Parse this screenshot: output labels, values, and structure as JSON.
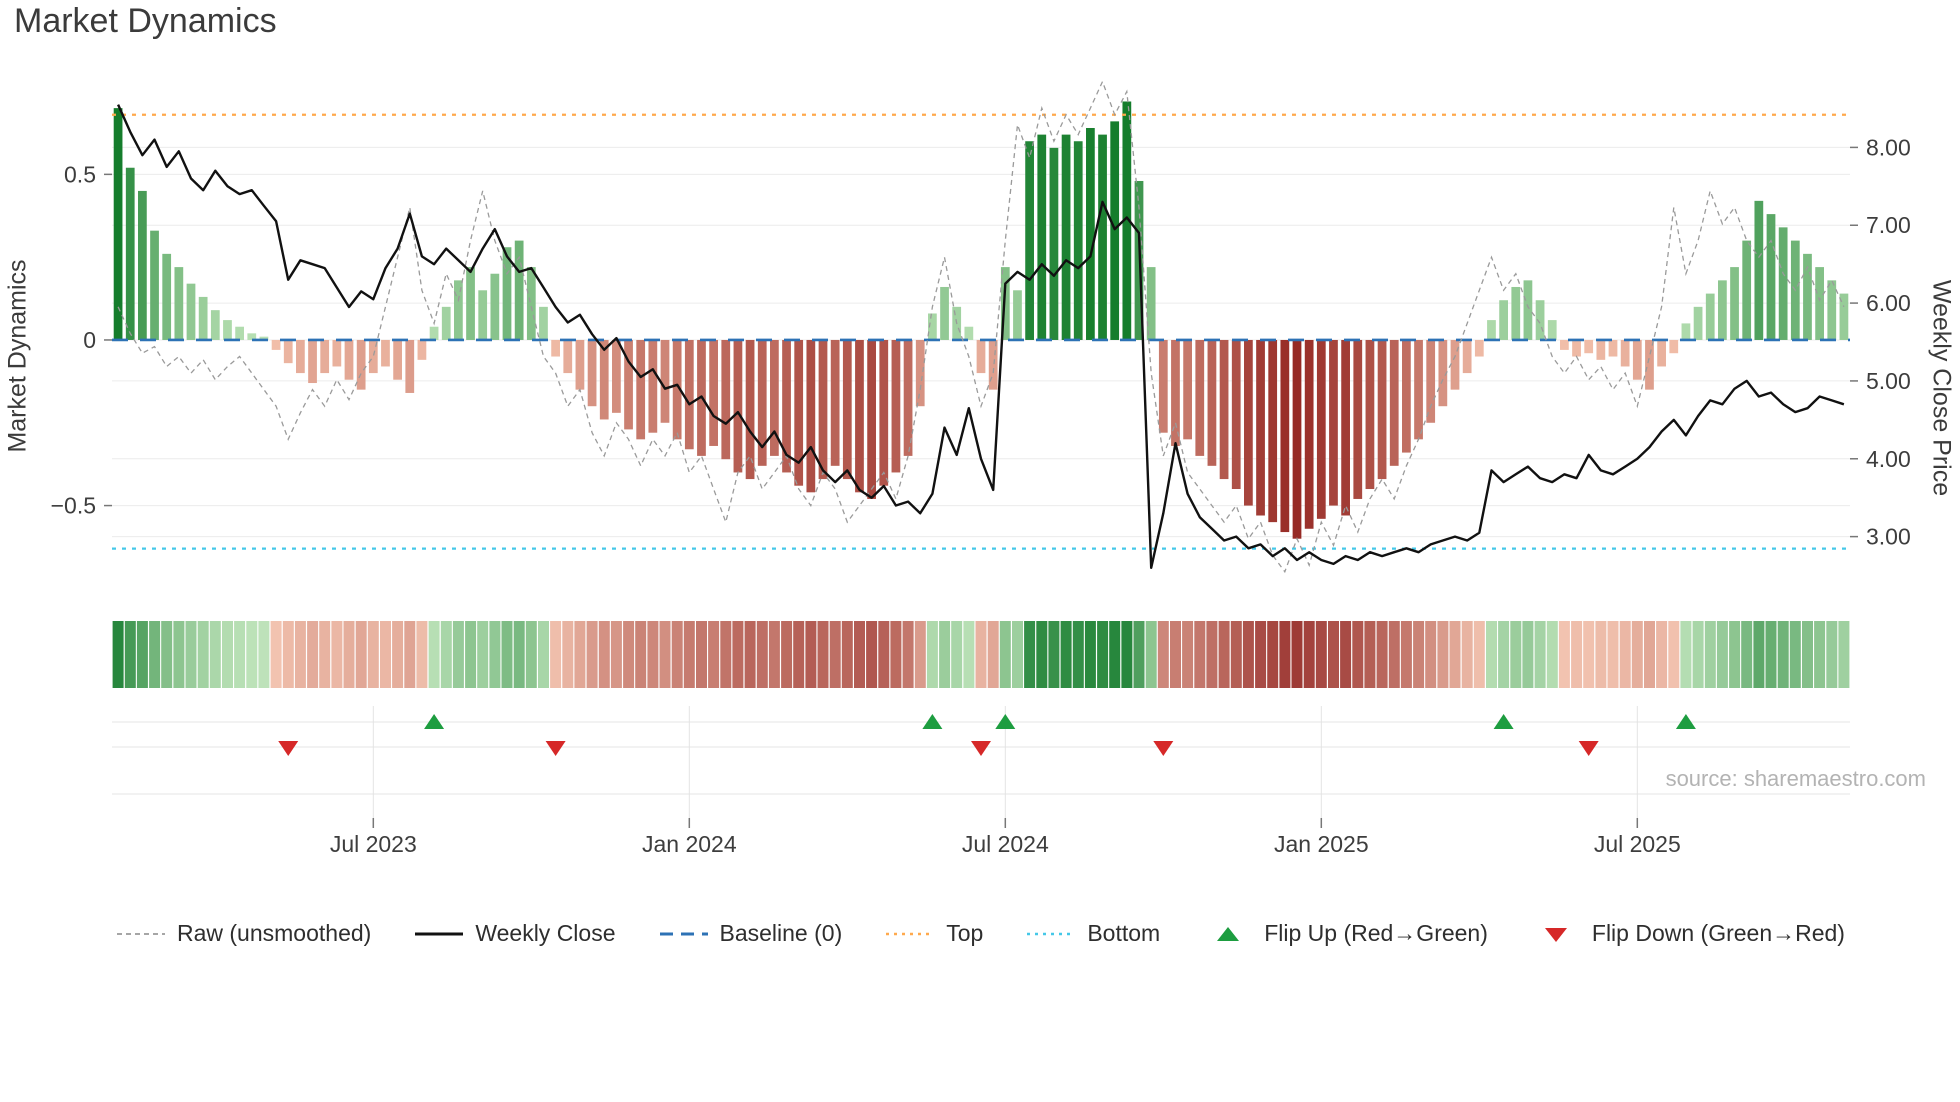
{
  "title": "Market Dynamics",
  "source": "source: sharemaestro.com",
  "axes": {
    "left_label": "Market Dynamics",
    "right_label": "Weekly Close Price",
    "left_ticks": [
      {
        "value": 0.5,
        "label": "0.5"
      },
      {
        "value": 0,
        "label": "0"
      },
      {
        "value": -0.5,
        "label": "−0.5"
      }
    ],
    "right_ticks": [
      {
        "value": 8,
        "label": "8.00"
      },
      {
        "value": 7,
        "label": "7.00"
      },
      {
        "value": 6,
        "label": "6.00"
      },
      {
        "value": 5,
        "label": "5.00"
      },
      {
        "value": 4,
        "label": "4.00"
      },
      {
        "value": 3,
        "label": "3.00"
      }
    ],
    "x_ticks": [
      {
        "week": 21,
        "label": "Jul 2023"
      },
      {
        "week": 47,
        "label": "Jan 2024"
      },
      {
        "week": 73,
        "label": "Jul 2024"
      },
      {
        "week": 99,
        "label": "Jan 2025"
      },
      {
        "week": 125,
        "label": "Jul 2025"
      }
    ]
  },
  "chart_data": {
    "type": "combo",
    "x_unit": "week-index",
    "n_points": 143,
    "left_axis_range": [
      -0.77,
      0.8
    ],
    "right_axis_range": [
      2.25,
      8.93
    ],
    "reference_lines": {
      "baseline": 0,
      "top": 0.68,
      "bottom": -0.63
    },
    "flip_up_weeks": [
      26,
      67,
      73,
      114,
      129
    ],
    "flip_down_weeks": [
      14,
      36,
      71,
      86,
      121
    ],
    "oscillator": {
      "name": "Market Dynamics (smoothed bars + heatmap strip)",
      "type": "bar",
      "axis": "left",
      "values": [
        0.7,
        0.52,
        0.45,
        0.33,
        0.26,
        0.22,
        0.17,
        0.13,
        0.09,
        0.06,
        0.04,
        0.02,
        0.01,
        -0.03,
        -0.07,
        -0.1,
        -0.13,
        -0.1,
        -0.08,
        -0.12,
        -0.15,
        -0.1,
        -0.08,
        -0.12,
        -0.16,
        -0.06,
        0.04,
        0.1,
        0.18,
        0.22,
        0.15,
        0.2,
        0.28,
        0.3,
        0.22,
        0.1,
        -0.05,
        -0.1,
        -0.15,
        -0.2,
        -0.24,
        -0.22,
        -0.27,
        -0.3,
        -0.28,
        -0.25,
        -0.3,
        -0.33,
        -0.35,
        -0.32,
        -0.36,
        -0.4,
        -0.42,
        -0.38,
        -0.35,
        -0.4,
        -0.44,
        -0.46,
        -0.42,
        -0.38,
        -0.42,
        -0.46,
        -0.48,
        -0.44,
        -0.4,
        -0.35,
        -0.2,
        0.08,
        0.16,
        0.1,
        0.04,
        -0.1,
        -0.15,
        0.22,
        0.15,
        0.6,
        0.62,
        0.58,
        0.62,
        0.6,
        0.64,
        0.62,
        0.66,
        0.72,
        0.48,
        0.22,
        -0.28,
        -0.32,
        -0.3,
        -0.35,
        -0.38,
        -0.42,
        -0.45,
        -0.5,
        -0.53,
        -0.55,
        -0.58,
        -0.6,
        -0.57,
        -0.54,
        -0.5,
        -0.53,
        -0.48,
        -0.45,
        -0.42,
        -0.38,
        -0.34,
        -0.3,
        -0.25,
        -0.2,
        -0.15,
        -0.1,
        -0.05,
        0.06,
        0.12,
        0.16,
        0.18,
        0.12,
        0.06,
        -0.03,
        -0.05,
        -0.04,
        -0.06,
        -0.05,
        -0.08,
        -0.12,
        -0.15,
        -0.08,
        -0.04,
        0.05,
        0.1,
        0.14,
        0.18,
        0.22,
        0.3,
        0.42,
        0.38,
        0.34,
        0.3,
        0.26,
        0.22,
        0.18,
        0.14
      ]
    },
    "raw": {
      "name": "Raw (unsmoothed)",
      "type": "line",
      "axis": "left",
      "values": [
        0.1,
        0.02,
        -0.04,
        -0.02,
        -0.08,
        -0.05,
        -0.1,
        -0.06,
        -0.12,
        -0.08,
        -0.05,
        -0.1,
        -0.15,
        -0.2,
        -0.3,
        -0.22,
        -0.15,
        -0.2,
        -0.12,
        -0.18,
        -0.1,
        -0.05,
        0.1,
        0.25,
        0.4,
        0.15,
        0.05,
        0.2,
        0.12,
        0.3,
        0.45,
        0.3,
        0.2,
        0.25,
        0.1,
        -0.05,
        -0.1,
        -0.2,
        -0.15,
        -0.28,
        -0.35,
        -0.25,
        -0.3,
        -0.38,
        -0.3,
        -0.35,
        -0.28,
        -0.4,
        -0.35,
        -0.45,
        -0.55,
        -0.4,
        -0.35,
        -0.45,
        -0.4,
        -0.35,
        -0.45,
        -0.5,
        -0.4,
        -0.45,
        -0.55,
        -0.5,
        -0.45,
        -0.4,
        -0.48,
        -0.35,
        -0.15,
        0.1,
        0.25,
        0.05,
        -0.05,
        -0.2,
        -0.1,
        0.3,
        0.65,
        0.55,
        0.7,
        0.6,
        0.68,
        0.62,
        0.7,
        0.78,
        0.68,
        0.75,
        0.4,
        -0.1,
        -0.35,
        -0.25,
        -0.4,
        -0.45,
        -0.5,
        -0.55,
        -0.5,
        -0.6,
        -0.55,
        -0.65,
        -0.7,
        -0.6,
        -0.68,
        -0.55,
        -0.62,
        -0.5,
        -0.58,
        -0.48,
        -0.42,
        -0.48,
        -0.38,
        -0.3,
        -0.2,
        -0.12,
        -0.05,
        0.05,
        0.15,
        0.25,
        0.15,
        0.2,
        0.1,
        0.05,
        -0.05,
        -0.1,
        -0.05,
        -0.12,
        -0.08,
        -0.15,
        -0.1,
        -0.2,
        -0.05,
        0.1,
        0.4,
        0.2,
        0.3,
        0.45,
        0.35,
        0.4,
        0.3,
        0.25,
        0.3,
        0.2,
        0.15,
        0.22,
        0.12,
        0.18,
        0.1
      ]
    },
    "weekly_close": {
      "name": "Weekly Close",
      "type": "line",
      "axis": "right",
      "values": [
        8.55,
        8.2,
        7.9,
        8.1,
        7.75,
        7.95,
        7.6,
        7.45,
        7.7,
        7.5,
        7.4,
        7.45,
        7.25,
        7.05,
        6.3,
        6.55,
        6.5,
        6.45,
        6.2,
        5.95,
        6.15,
        6.05,
        6.45,
        6.7,
        7.15,
        6.6,
        6.5,
        6.7,
        6.55,
        6.4,
        6.7,
        6.95,
        6.6,
        6.4,
        6.45,
        6.2,
        5.95,
        5.75,
        5.85,
        5.6,
        5.4,
        5.55,
        5.25,
        5.05,
        5.15,
        4.9,
        4.95,
        4.7,
        4.8,
        4.55,
        4.45,
        4.6,
        4.35,
        4.15,
        4.35,
        4.05,
        3.95,
        4.15,
        3.85,
        3.7,
        3.85,
        3.6,
        3.5,
        3.65,
        3.4,
        3.45,
        3.3,
        3.55,
        4.4,
        4.05,
        4.65,
        4.0,
        3.6,
        6.25,
        6.4,
        6.3,
        6.5,
        6.35,
        6.55,
        6.45,
        6.6,
        7.3,
        6.95,
        7.1,
        6.9,
        2.6,
        3.3,
        4.2,
        3.55,
        3.25,
        3.1,
        2.95,
        3.0,
        2.85,
        2.9,
        2.75,
        2.85,
        2.7,
        2.8,
        2.7,
        2.65,
        2.75,
        2.7,
        2.8,
        2.75,
        2.8,
        2.85,
        2.8,
        2.9,
        2.95,
        3.0,
        2.95,
        3.05,
        3.85,
        3.7,
        3.8,
        3.9,
        3.75,
        3.7,
        3.8,
        3.75,
        4.05,
        3.85,
        3.8,
        3.9,
        4.0,
        4.15,
        4.35,
        4.5,
        4.3,
        4.55,
        4.75,
        4.7,
        4.9,
        5.0,
        4.8,
        4.85,
        4.7,
        4.6,
        4.65,
        4.8,
        4.75,
        4.7
      ]
    },
    "heatmap_note": "color strip below main panel encodes the same oscillator values (green positive / red negative, intensity = magnitude)"
  },
  "colors": {
    "weekly_close": "#111111",
    "raw": "#9a9a9a",
    "baseline": "#2d72b5",
    "top": "#ffa94d",
    "bottom": "#45c8e8",
    "flip_up": "#1d9d40",
    "flip_down": "#d62828",
    "bar_green_light": "#bbe2b6",
    "bar_green_dark": "#157d2c",
    "bar_red_light": "#f6c6b0",
    "bar_red_dark": "#8e1d19",
    "grid": "#ececec",
    "tick_text": "#3d3d3d"
  },
  "legend": {
    "items": [
      {
        "key": "raw",
        "label": "Raw (unsmoothed)",
        "swatch": "line",
        "color": "#9a9a9a",
        "dash": "5 4",
        "width": 1.8
      },
      {
        "key": "weekly-close",
        "label": "Weekly Close",
        "swatch": "line",
        "color": "#111111",
        "dash": "",
        "width": 3
      },
      {
        "key": "baseline",
        "label": "Baseline (0)",
        "swatch": "line",
        "color": "#2d72b5",
        "dash": "13 8",
        "width": 3
      },
      {
        "key": "top",
        "label": "Top",
        "swatch": "line",
        "color": "#ffa94d",
        "dash": "3 5",
        "width": 2.6
      },
      {
        "key": "bottom",
        "label": "Bottom",
        "swatch": "line",
        "color": "#45c8e8",
        "dash": "3 5",
        "width": 2.6
      },
      {
        "key": "flip-up",
        "label": "Flip Up (Red→Green)",
        "swatch": "triangle-up",
        "color": "#1d9d40"
      },
      {
        "key": "flip-down",
        "label": "Flip Down (Green→Red)",
        "swatch": "triangle-down",
        "color": "#d62828"
      }
    ]
  }
}
